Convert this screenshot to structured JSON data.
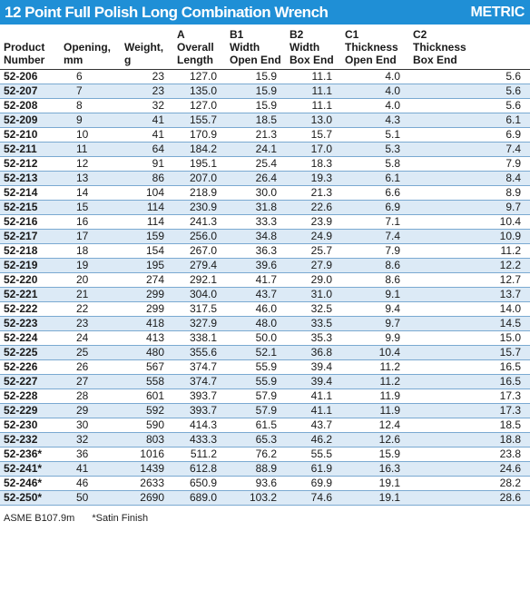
{
  "header": {
    "title": "12 Point Full Polish Long Combination Wrench",
    "badge": "METRIC"
  },
  "columns": [
    [
      "",
      "Product",
      "Number"
    ],
    [
      "",
      "Opening,",
      "mm"
    ],
    [
      "",
      "Weight,",
      "g"
    ],
    [
      "A",
      "Overall",
      "Length"
    ],
    [
      "B1",
      "Width",
      "Open End"
    ],
    [
      "B2",
      "Width",
      "Box End"
    ],
    [
      "C1",
      "Thickness",
      "Open End"
    ],
    [
      "C2",
      "Thickness",
      "Box End"
    ]
  ],
  "rows": [
    [
      "52-206",
      "6",
      "23",
      "127.0",
      "15.9",
      "11.1",
      "4.0",
      "5.6"
    ],
    [
      "52-207",
      "7",
      "23",
      "135.0",
      "15.9",
      "11.1",
      "4.0",
      "5.6"
    ],
    [
      "52-208",
      "8",
      "32",
      "127.0",
      "15.9",
      "11.1",
      "4.0",
      "5.6"
    ],
    [
      "52-209",
      "9",
      "41",
      "155.7",
      "18.5",
      "13.0",
      "4.3",
      "6.1"
    ],
    [
      "52-210",
      "10",
      "41",
      "170.9",
      "21.3",
      "15.7",
      "5.1",
      "6.9"
    ],
    [
      "52-211",
      "11",
      "64",
      "184.2",
      "24.1",
      "17.0",
      "5.3",
      "7.4"
    ],
    [
      "52-212",
      "12",
      "91",
      "195.1",
      "25.4",
      "18.3",
      "5.8",
      "7.9"
    ],
    [
      "52-213",
      "13",
      "86",
      "207.0",
      "26.4",
      "19.3",
      "6.1",
      "8.4"
    ],
    [
      "52-214",
      "14",
      "104",
      "218.9",
      "30.0",
      "21.3",
      "6.6",
      "8.9"
    ],
    [
      "52-215",
      "15",
      "114",
      "230.9",
      "31.8",
      "22.6",
      "6.9",
      "9.7"
    ],
    [
      "52-216",
      "16",
      "114",
      "241.3",
      "33.3",
      "23.9",
      "7.1",
      "10.4"
    ],
    [
      "52-217",
      "17",
      "159",
      "256.0",
      "34.8",
      "24.9",
      "7.4",
      "10.9"
    ],
    [
      "52-218",
      "18",
      "154",
      "267.0",
      "36.3",
      "25.7",
      "7.9",
      "11.2"
    ],
    [
      "52-219",
      "19",
      "195",
      "279.4",
      "39.6",
      "27.9",
      "8.6",
      "12.2"
    ],
    [
      "52-220",
      "20",
      "274",
      "292.1",
      "41.7",
      "29.0",
      "8.6",
      "12.7"
    ],
    [
      "52-221",
      "21",
      "299",
      "304.0",
      "43.7",
      "31.0",
      "9.1",
      "13.7"
    ],
    [
      "52-222",
      "22",
      "299",
      "317.5",
      "46.0",
      "32.5",
      "9.4",
      "14.0"
    ],
    [
      "52-223",
      "23",
      "418",
      "327.9",
      "48.0",
      "33.5",
      "9.7",
      "14.5"
    ],
    [
      "52-224",
      "24",
      "413",
      "338.1",
      "50.0",
      "35.3",
      "9.9",
      "15.0"
    ],
    [
      "52-225",
      "25",
      "480",
      "355.6",
      "52.1",
      "36.8",
      "10.4",
      "15.7"
    ],
    [
      "52-226",
      "26",
      "567",
      "374.7",
      "55.9",
      "39.4",
      "11.2",
      "16.5"
    ],
    [
      "52-227",
      "27",
      "558",
      "374.7",
      "55.9",
      "39.4",
      "11.2",
      "16.5"
    ],
    [
      "52-228",
      "28",
      "601",
      "393.7",
      "57.9",
      "41.1",
      "11.9",
      "17.3"
    ],
    [
      "52-229",
      "29",
      "592",
      "393.7",
      "57.9",
      "41.1",
      "11.9",
      "17.3"
    ],
    [
      "52-230",
      "30",
      "590",
      "414.3",
      "61.5",
      "43.7",
      "12.4",
      "18.5"
    ],
    [
      "52-232",
      "32",
      "803",
      "433.3",
      "65.3",
      "46.2",
      "12.6",
      "18.8"
    ],
    [
      "52-236*",
      "36",
      "1016",
      "511.2",
      "76.2",
      "55.5",
      "15.9",
      "23.8"
    ],
    [
      "52-241*",
      "41",
      "1439",
      "612.8",
      "88.9",
      "61.9",
      "16.3",
      "24.6"
    ],
    [
      "52-246*",
      "46",
      "2633",
      "650.9",
      "93.6",
      "69.9",
      "19.1",
      "28.2"
    ],
    [
      "52-250*",
      "50",
      "2690",
      "689.0",
      "103.2",
      "74.6",
      "19.1",
      "28.6"
    ]
  ],
  "footer": {
    "standard": "ASME B107.9m",
    "note": "*Satin Finish"
  },
  "colors": {
    "title_bg": "#1f8fd6",
    "row_alt": "#dceaf6",
    "row_rule": "#7aa9d1"
  }
}
